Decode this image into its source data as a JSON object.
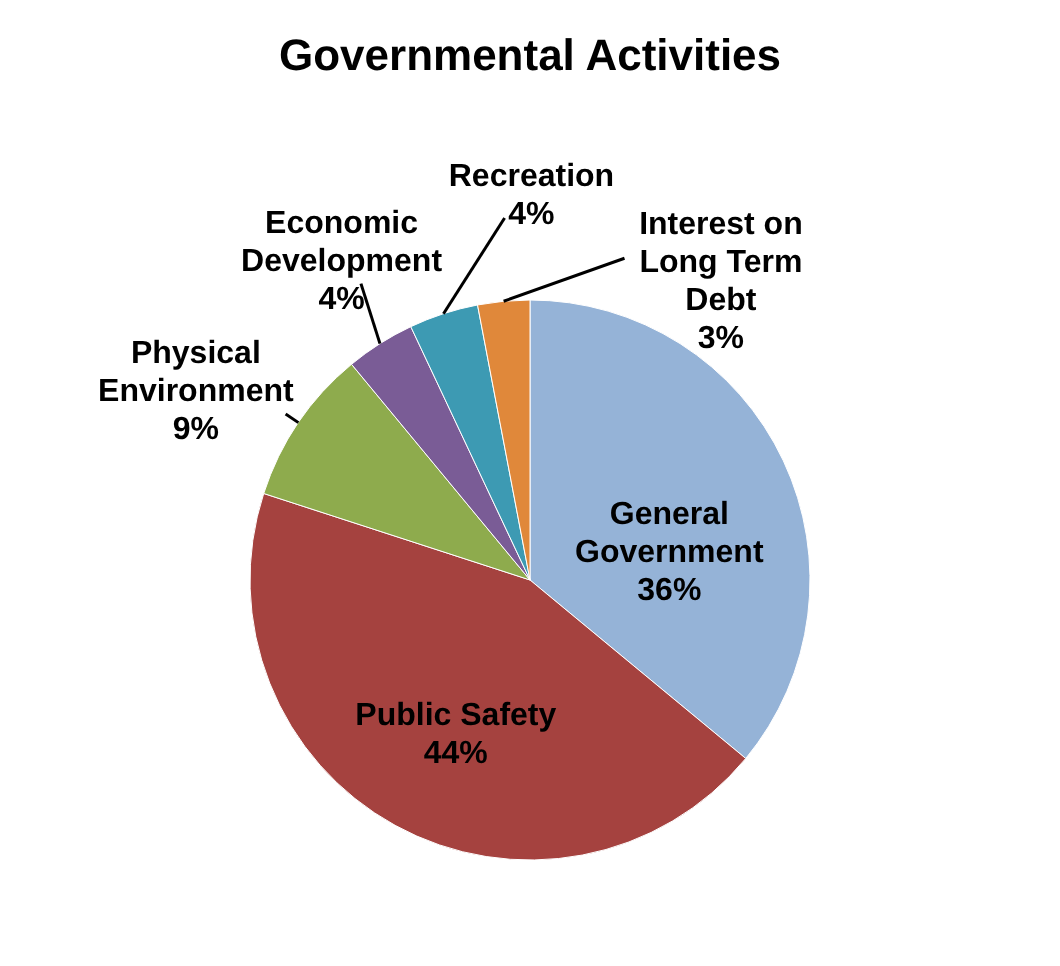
{
  "chart_data": {
    "type": "pie",
    "title": "Governmental Activities",
    "categories": [
      "General Government",
      "Public Safety",
      "Physical Environment",
      "Economic Development",
      "Recreation",
      "Interest on Long Term Debt"
    ],
    "values": [
      36,
      44,
      9,
      4,
      4,
      3
    ],
    "colors": [
      "#95b3d7",
      "#a5423f",
      "#8eab4d",
      "#7a5c96",
      "#3d9ab3",
      "#e0883a"
    ],
    "value_labels": [
      "36%",
      "44%",
      "9%",
      "4%",
      "4%",
      "3%"
    ],
    "legend": false
  }
}
